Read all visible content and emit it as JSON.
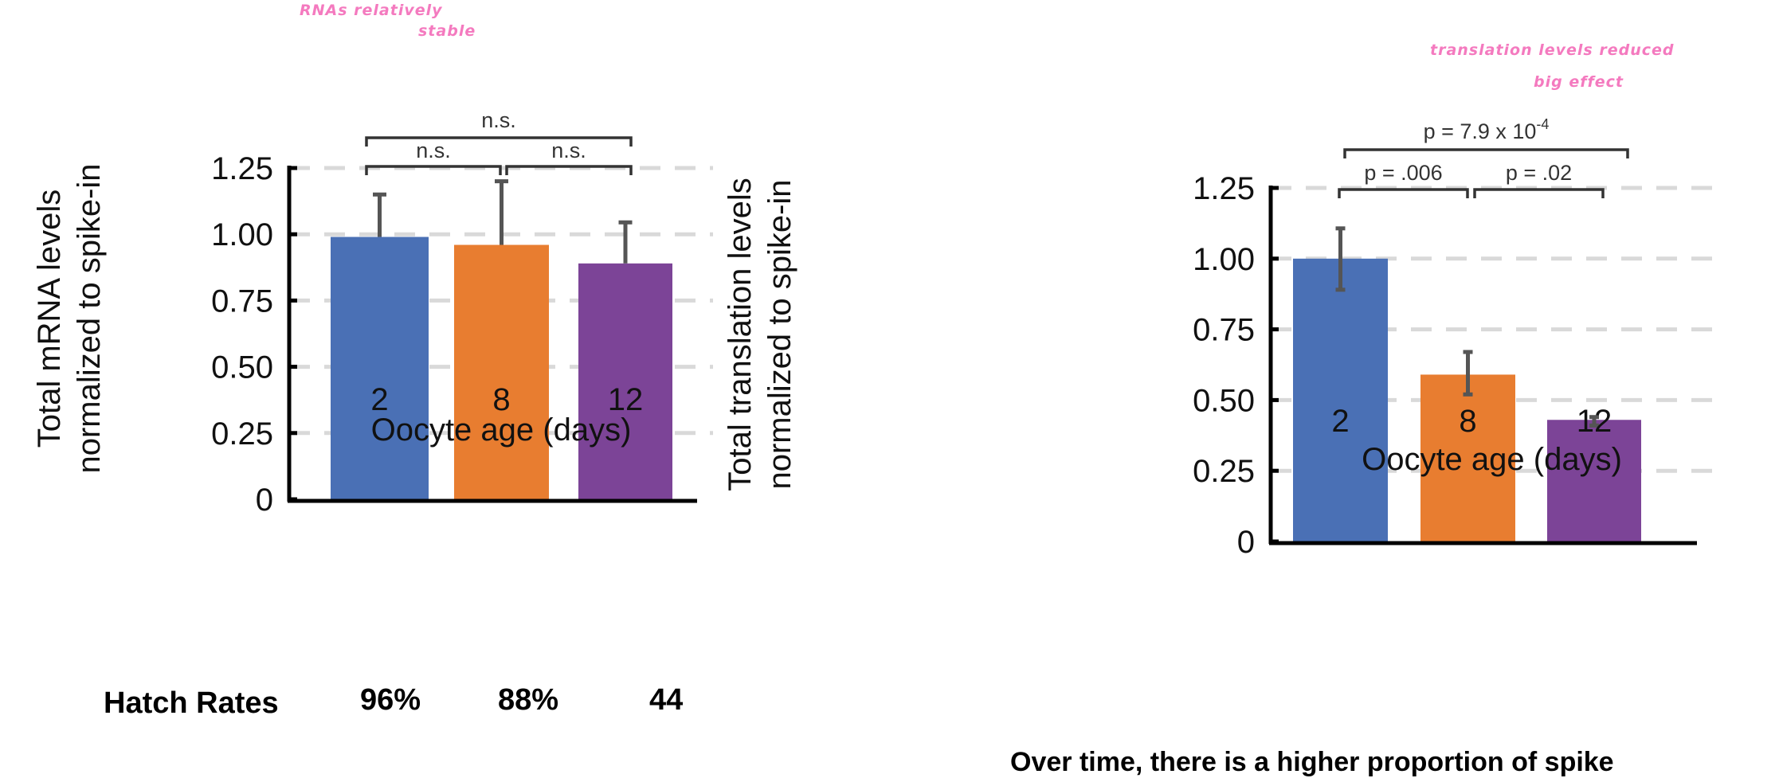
{
  "annotations": {
    "left_note_line1": "RNAs relatively",
    "left_note_line2": "stable",
    "right_note_line1": "translation levels reduced",
    "right_note_line2": "big effect"
  },
  "hatch_rates": {
    "label": "Hatch Rates",
    "values": [
      "96%",
      "88%",
      "44"
    ]
  },
  "bottom_text": "Over time, there is a higher proportion of spike",
  "colors": {
    "day2": "#4a70b5",
    "day8": "#e87d30",
    "day12": "#7c4497",
    "error_bar": "#555555",
    "grid": "#d9d9d9"
  },
  "chart_data": [
    {
      "type": "bar",
      "categories": [
        "2",
        "8",
        "12"
      ],
      "values": [
        0.99,
        0.96,
        0.89
      ],
      "error_upper": [
        1.15,
        1.2,
        1.045
      ],
      "xlabel": "Oocyte age (days)",
      "ylabel_lines": [
        "Total mRNA levels",
        "normalized to spike-in"
      ],
      "ylim": [
        0,
        1.25
      ],
      "yticks": [
        "0",
        "0.25",
        "0.50",
        "0.75",
        "1.00",
        "1.25"
      ],
      "grid": "dashed horizontal",
      "significance": [
        {
          "from": "2",
          "to": "12",
          "label": "n.s."
        },
        {
          "from": "2",
          "to": "8",
          "label": "n.s."
        },
        {
          "from": "8",
          "to": "12",
          "label": "n.s."
        }
      ]
    },
    {
      "type": "bar",
      "categories": [
        "2",
        "8",
        "12"
      ],
      "values": [
        1.0,
        0.59,
        0.43
      ],
      "error_upper": [
        1.107,
        0.67,
        0.44
      ],
      "error_lower": [
        0.89,
        0.52,
        0.41
      ],
      "xlabel": "Oocyte age (days)",
      "ylabel_lines": [
        "Total translation levels",
        "normalized to spike-in"
      ],
      "ylim": [
        0,
        1.25
      ],
      "yticks": [
        "0",
        "0.25",
        "0.50",
        "0.75",
        "1.00",
        "1.25"
      ],
      "grid": "dashed horizontal",
      "significance": [
        {
          "from": "2",
          "to": "12",
          "label": "p = 7.9 x 10",
          "exponent": "-4"
        },
        {
          "from": "2",
          "to": "8",
          "label": "p = .006"
        },
        {
          "from": "8",
          "to": "12",
          "label": "p = .02"
        }
      ]
    }
  ]
}
